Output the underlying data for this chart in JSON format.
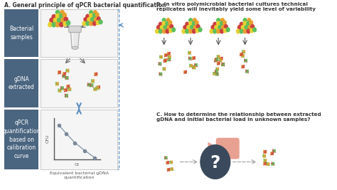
{
  "section_A_title": "A. General principle of qPCR bacterial quantification",
  "section_B_title": "B. In vitro polymicrobial bacterial cultures technical\nreplicates will inevitably yield some level of variability",
  "section_C_title": "C. How to determine the relationship between extracted\ngDNA and initial bacterial load in unknown samples?",
  "label_bacterial": "Bacterial\nsamples",
  "label_gdna": "gDNA\nextracted",
  "label_qpcr": "qPCR\nquantification\nbased on\ncalibration\ncurve",
  "label_equiv": "Equivalent bacterial gDNA\nquantification",
  "label_cfu": "CFU",
  "label_ct": "Ct",
  "bg_color": "#ffffff",
  "panel_bg": "#4a6580",
  "panel_text": "#ffffff",
  "box_bg": "#f5f5f5",
  "box_border": "#c8c8c8",
  "dna_green": "#5cbf5c",
  "dna_orange": "#e8a030",
  "dna_red": "#cc4040",
  "bact_green": "#5cbf5c",
  "bact_orange": "#e8a030",
  "bact_red": "#cc4040",
  "bact_yellow": "#e8d030",
  "arrow_blue": "#5a8fc0",
  "arrow_gray": "#777777",
  "dash_blue": "#5a8fc0",
  "dark_circle": "#3a4a5c",
  "salmon": "#e8a090",
  "graph_color": "#778899",
  "graph_line": "#778899"
}
